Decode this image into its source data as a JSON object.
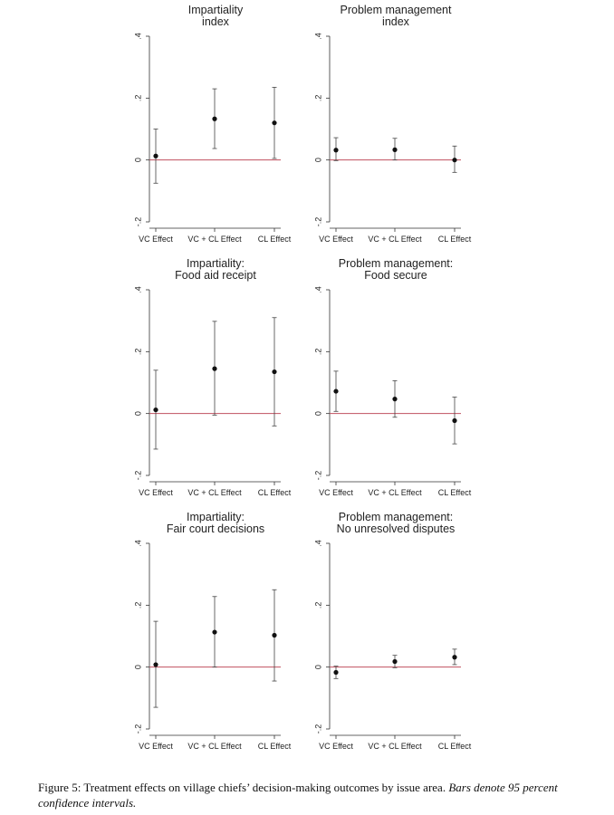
{
  "caption": {
    "main": "Figure 5: Treatment effects on village chiefs’ decision-making outcomes by issue area.",
    "italic": "Bars denote 95 percent confidence intervals."
  },
  "colors": {
    "zero_line": "#c0505f",
    "marker": "#111111",
    "axis": "#333333"
  },
  "chart_data": [
    {
      "type": "scatter",
      "title": [
        "Impartiality",
        "index"
      ],
      "categories": [
        "VC Effect",
        "VC + CL Effect",
        "CL Effect"
      ],
      "values": [
        0.013,
        0.133,
        0.12
      ],
      "ci_low": [
        -0.075,
        0.037,
        0.005
      ],
      "ci_high": [
        0.1,
        0.23,
        0.235
      ],
      "ylim": [
        -0.2,
        0.4
      ],
      "yticks": [
        -0.2,
        0,
        0.2,
        0.4
      ],
      "ytick_labels": [
        "-.2",
        "0",
        ".2",
        ".4"
      ],
      "reference_line": 0
    },
    {
      "type": "scatter",
      "title": [
        "Problem management",
        "index"
      ],
      "categories": [
        "VC Effect",
        "VC + CL Effect",
        "CL Effect"
      ],
      "values": [
        0.032,
        0.033,
        0.0
      ],
      "ci_low": [
        -0.002,
        0.0,
        -0.04
      ],
      "ci_high": [
        0.072,
        0.07,
        0.045
      ],
      "ylim": [
        -0.2,
        0.4
      ],
      "yticks": [
        -0.2,
        0,
        0.2,
        0.4
      ],
      "ytick_labels": [
        "-.2",
        "0",
        ".2",
        ".4"
      ],
      "reference_line": 0
    },
    {
      "type": "scatter",
      "title": [
        "Impartiality:",
        "Food aid receipt"
      ],
      "categories": [
        "VC Effect",
        "VC + CL Effect",
        "CL Effect"
      ],
      "values": [
        0.012,
        0.145,
        0.135
      ],
      "ci_low": [
        -0.115,
        -0.005,
        -0.04
      ],
      "ci_high": [
        0.14,
        0.298,
        0.31
      ],
      "ylim": [
        -0.2,
        0.4
      ],
      "yticks": [
        -0.2,
        0,
        0.2,
        0.4
      ],
      "ytick_labels": [
        "-.2",
        "0",
        ".2",
        ".4"
      ],
      "reference_line": 0
    },
    {
      "type": "scatter",
      "title": [
        "Problem management:",
        "Food secure"
      ],
      "categories": [
        "VC Effect",
        "VC + CL Effect",
        "CL Effect"
      ],
      "values": [
        0.072,
        0.047,
        -0.023
      ],
      "ci_low": [
        0.007,
        -0.012,
        -0.098
      ],
      "ci_high": [
        0.137,
        0.106,
        0.053
      ],
      "ylim": [
        -0.2,
        0.4
      ],
      "yticks": [
        -0.2,
        0,
        0.2,
        0.4
      ],
      "ytick_labels": [
        "-.2",
        "0",
        ".2",
        ".4"
      ],
      "reference_line": 0
    },
    {
      "type": "scatter",
      "title": [
        "Impartiality:",
        "Fair court decisions"
      ],
      "categories": [
        "VC Effect",
        "VC + CL Effect",
        "CL Effect"
      ],
      "values": [
        0.008,
        0.113,
        0.103
      ],
      "ci_low": [
        -0.13,
        0.0,
        -0.045
      ],
      "ci_high": [
        0.148,
        0.228,
        0.25
      ],
      "ylim": [
        -0.2,
        0.4
      ],
      "yticks": [
        -0.2,
        0,
        0.2,
        0.4
      ],
      "ytick_labels": [
        "-.2",
        "0",
        ".2",
        ".4"
      ],
      "reference_line": 0
    },
    {
      "type": "scatter",
      "title": [
        "Problem management:",
        "No unresolved disputes"
      ],
      "categories": [
        "VC Effect",
        "VC + CL Effect",
        "CL Effect"
      ],
      "values": [
        -0.017,
        0.018,
        0.032
      ],
      "ci_low": [
        -0.037,
        -0.002,
        0.008
      ],
      "ci_high": [
        0.003,
        0.038,
        0.058
      ],
      "ylim": [
        -0.2,
        0.4
      ],
      "yticks": [
        -0.2,
        0,
        0.2,
        0.4
      ],
      "ytick_labels": [
        "-.2",
        "0",
        ".2",
        ".4"
      ],
      "reference_line": 0
    }
  ]
}
